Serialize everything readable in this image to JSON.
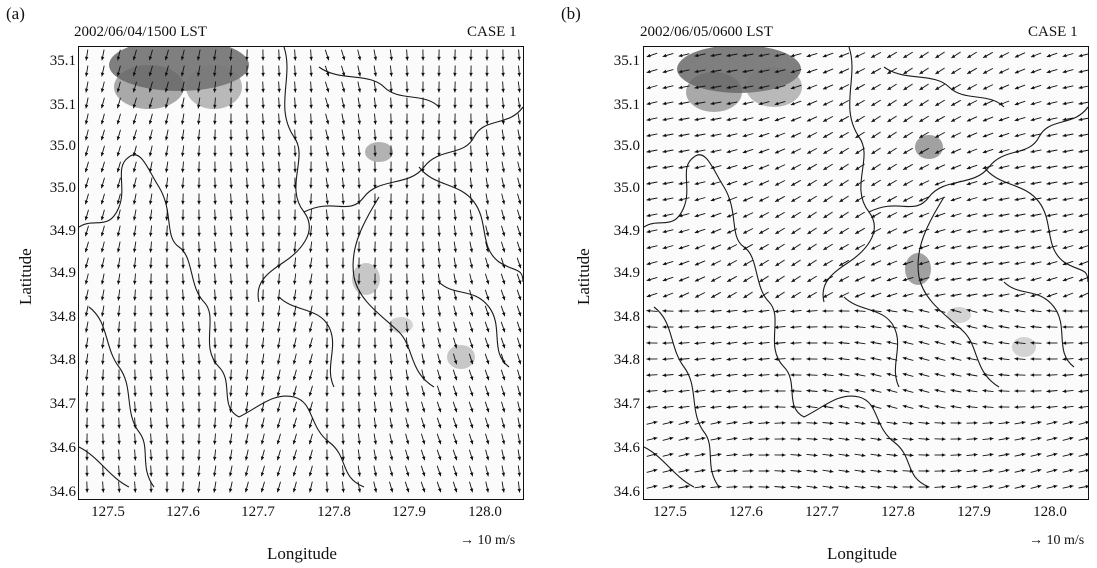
{
  "colors": {
    "ink": "#111111",
    "cloud": "#6b6b6b",
    "coast": "#1a1a1a",
    "background": "#ffffff"
  },
  "panels": [
    {
      "tag": "(a)",
      "datetime": "2002/06/04/1500 LST",
      "case": "CASE 1",
      "ylabel": "Latitude",
      "xlabel": "Longitude",
      "reference_vector": "→ 10 m/s",
      "yticks": [
        "35.1",
        "35.1",
        "35.0",
        "35.0",
        "34.9",
        "34.9",
        "34.8",
        "34.8",
        "34.7",
        "34.6",
        "34.6"
      ],
      "xticks": [
        "127.5",
        "127.6",
        "127.7",
        "127.8",
        "127.9",
        "128.0"
      ],
      "flow": "southward"
    },
    {
      "tag": "(b)",
      "datetime": "2002/06/05/0600 LST",
      "case": "CASE 1",
      "ylabel": "Latitude",
      "xlabel": "Longitude",
      "reference_vector": "→ 10 m/s",
      "yticks": [
        "35.1",
        "35.1",
        "35.0",
        "35.0",
        "34.9",
        "34.9",
        "34.8",
        "34.8",
        "34.7",
        "34.6",
        "34.6"
      ],
      "xticks": [
        "127.5",
        "127.6",
        "127.7",
        "127.8",
        "127.9",
        "128.0"
      ],
      "flow": "southwesterly"
    }
  ]
}
